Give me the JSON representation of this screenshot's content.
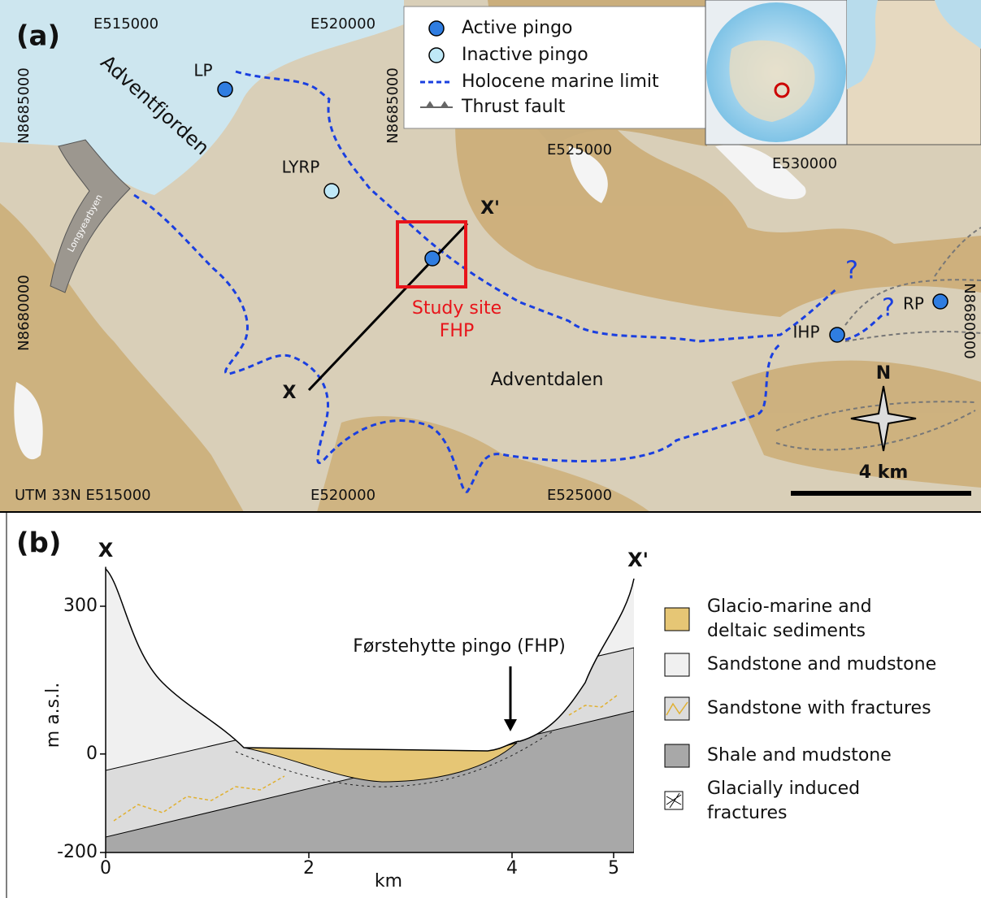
{
  "panel_a": {
    "label": "(a)",
    "legend": [
      "Active pingo",
      "Inactive pingo",
      "Holocene marine limit",
      "Thrust fault"
    ],
    "coordinates": {
      "top": [
        "E515000",
        "E520000",
        "E525000",
        "E530000"
      ],
      "left": [
        "N8685000",
        "N8680000"
      ],
      "inner": "N8685000",
      "right": "N8680000",
      "bottom": [
        "UTM 33N E515000",
        "E520000",
        "E525000"
      ]
    },
    "places": {
      "fjord": "Adventfjorden",
      "town": "Longyearbyen",
      "valley": "Adventdalen"
    },
    "pingos": [
      "LP",
      "LYRP",
      "IHP",
      "RP"
    ],
    "profile_ends": [
      "X",
      "X'"
    ],
    "study_site": [
      "Study site",
      "FHP"
    ],
    "unknown": "?",
    "north": "N",
    "scale": "4 km"
  },
  "panel_b": {
    "label": "(b)",
    "ends": [
      "X",
      "X'"
    ],
    "y_label": "m a.s.l.",
    "x_label": "km",
    "xlim": [
      0,
      5.2
    ],
    "ylim": [
      -200,
      380
    ],
    "xticks": [
      0,
      2,
      4,
      5
    ],
    "yticks": [
      300,
      0,
      -200
    ],
    "annotation": "Førstehytte pingo (FHP)",
    "legend": [
      [
        "Glacio-marine and",
        "deltaic sediments"
      ],
      [
        "Sandstone and mudstone"
      ],
      [
        "Sandstone with fractures"
      ],
      [
        "Shale and mudstone"
      ],
      [
        "Glacially induced",
        "fractures"
      ]
    ]
  }
}
